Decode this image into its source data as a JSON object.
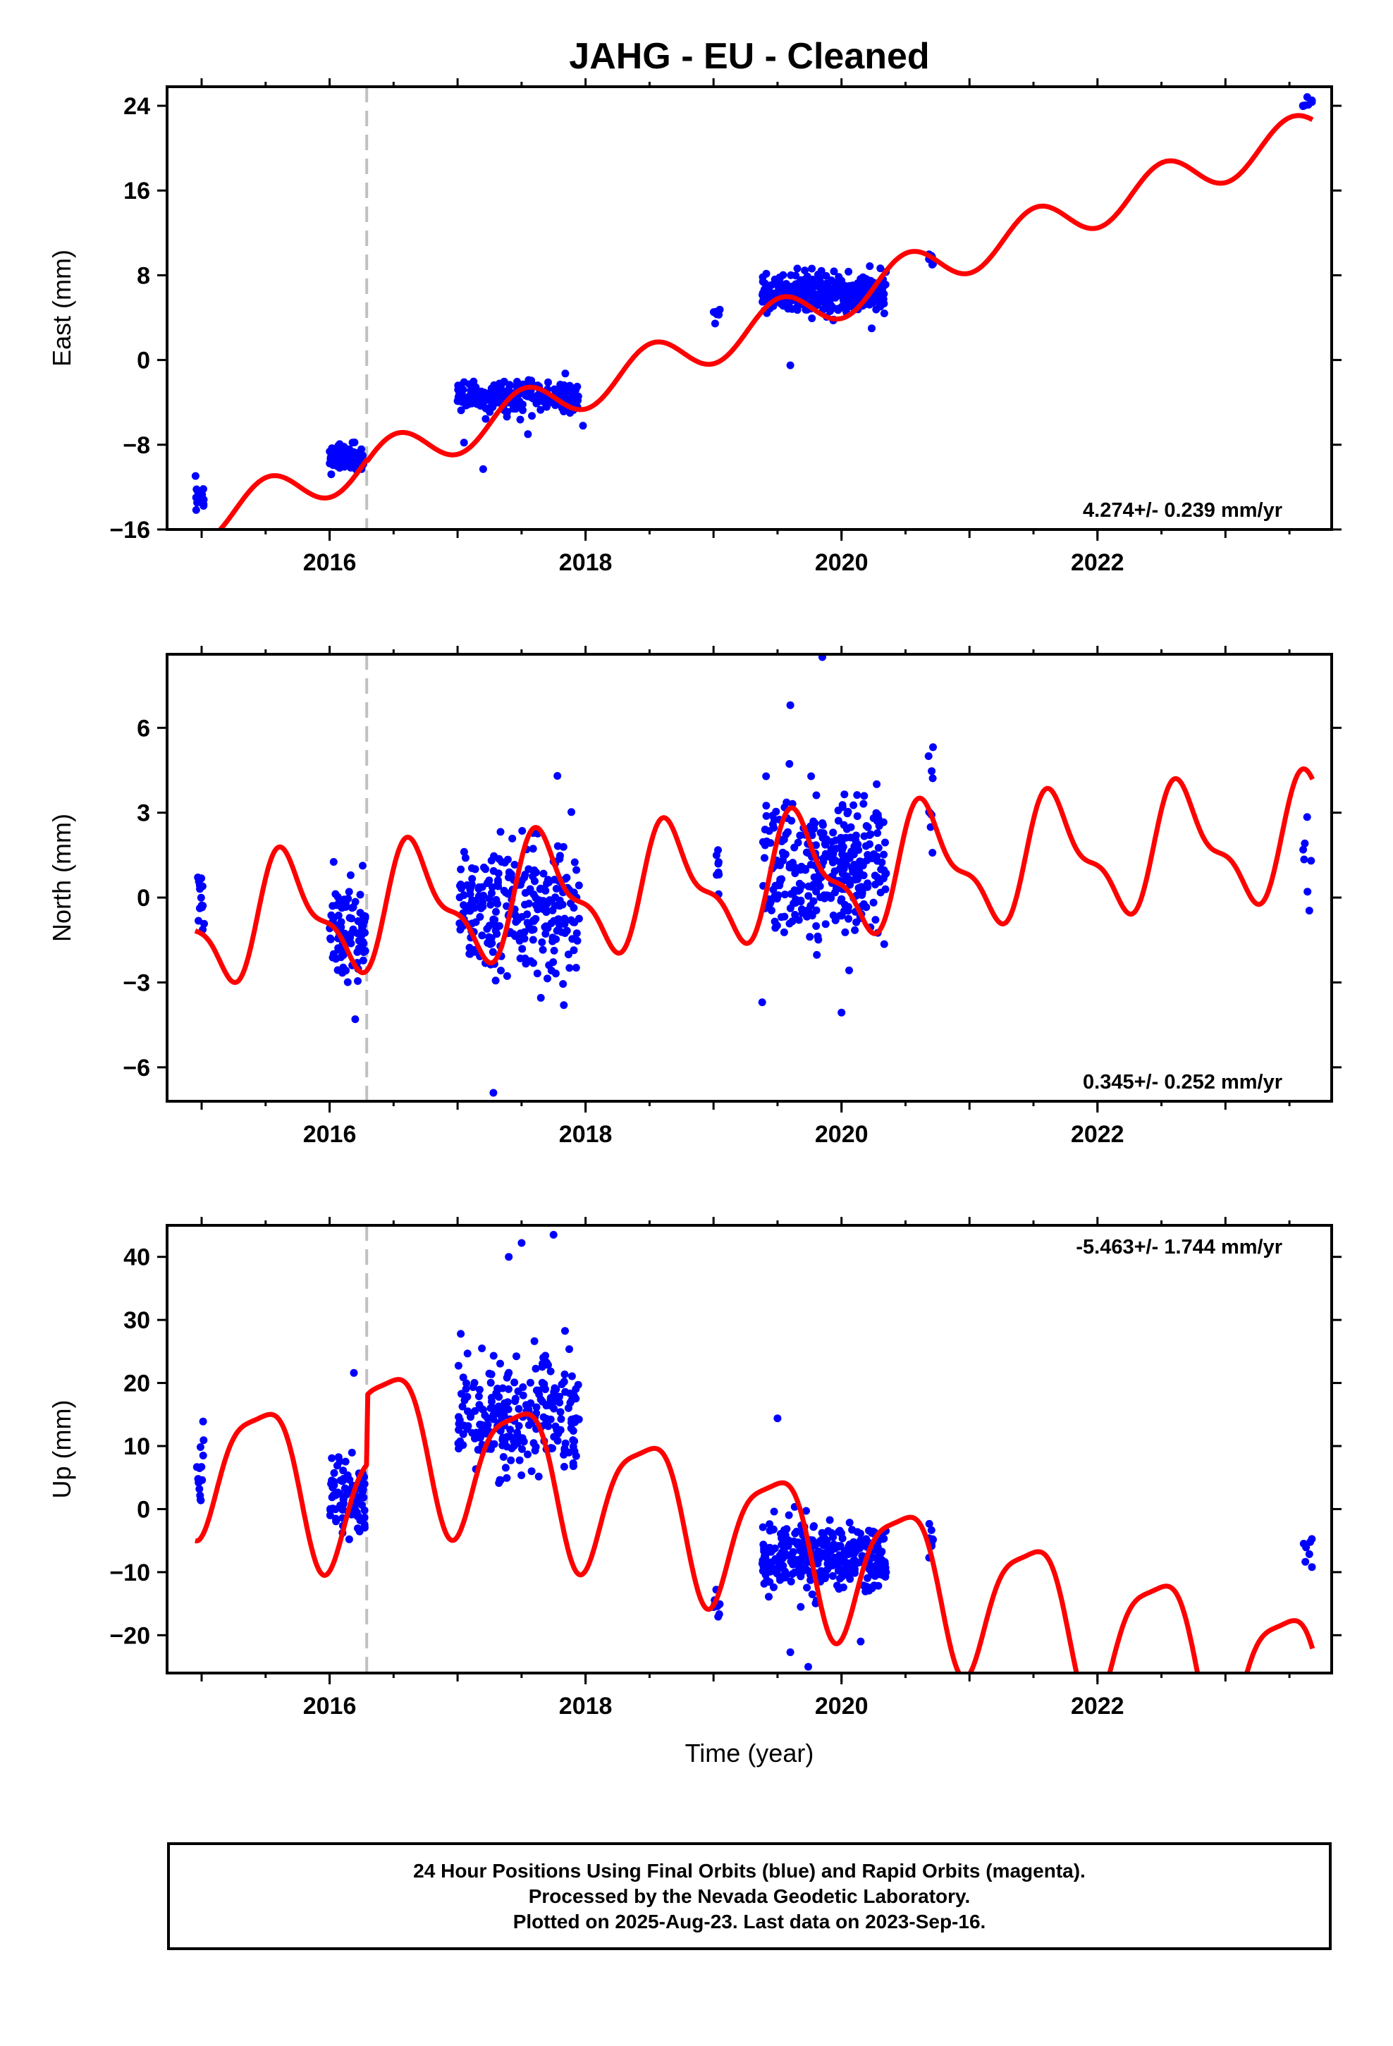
{
  "title": "JAHG  - EU - Cleaned",
  "colors": {
    "final_orbits": "#0000ff",
    "model": "#ff0000",
    "event_line": "#c0c0c0",
    "frame": "#000000"
  },
  "footer": {
    "line1": "24 Hour Positions Using Final Orbits (blue) and Rapid Orbits (magenta).",
    "line2": "Processed by the Nevada Geodetic Laboratory.",
    "line3": "Plotted on 2025-Aug-23. Last data on 2023-Sep-16."
  },
  "chart_data": [
    {
      "type": "scatter",
      "title": "JAHG  - EU - Cleaned",
      "xlabel": "",
      "ylabel": "East (mm)",
      "xlim": [
        2014.73,
        2023.83
      ],
      "ylim": [
        -16,
        25.8
      ],
      "xticks": [
        2016,
        2018,
        2020,
        2022
      ],
      "yticks": [
        -16,
        -8,
        0,
        8,
        16,
        24
      ],
      "rate_label": "4.274+/- 0.239 mm/yr",
      "event_line_x": 2016.29,
      "series": [
        {
          "style": "points",
          "clusters": [
            {
              "x": [
                2014.95,
                2015.02
              ],
              "y_center": -13.5,
              "y_spread": 1.5,
              "n": 14
            },
            {
              "x": [
                2016.0,
                2016.28
              ],
              "y_center": -9.2,
              "y_spread": 1.0,
              "n": 90
            },
            {
              "x": [
                2017.0,
                2017.95
              ],
              "y_center": -3.4,
              "y_spread": 1.3,
              "n": 260
            },
            {
              "x": [
                2019.0,
                2019.05
              ],
              "y_center": 4.2,
              "y_spread": 0.7,
              "n": 8
            },
            {
              "x": [
                2019.38,
                2020.35
              ],
              "y_center": 6.2,
              "y_spread": 1.6,
              "n": 330
            },
            {
              "x": [
                2020.68,
                2020.72
              ],
              "y_center": 9.8,
              "y_spread": 0.8,
              "n": 8
            },
            {
              "x": [
                2023.6,
                2023.68
              ],
              "y_center": 24.4,
              "y_spread": 0.7,
              "n": 7
            }
          ],
          "outliers": [
            [
              2017.2,
              -10.3
            ],
            [
              2017.05,
              -7.8
            ],
            [
              2017.98,
              -6.2
            ],
            [
              2019.6,
              -0.5
            ],
            [
              2020.32,
              6.8
            ],
            [
              2017.55,
              -7.0
            ]
          ]
        },
        {
          "style": "line",
          "model": {
            "t0": 2019.0,
            "offset": 1.65,
            "rate": 4.274,
            "a1s": -0.2,
            "a1c": -2.0,
            "a2s": 0.0,
            "a2c": 0.0
          },
          "x_range": [
            2014.95,
            2023.68
          ],
          "steps": [
            {
              "x": 2016.29,
              "dy": -0.2
            }
          ]
        }
      ]
    },
    {
      "type": "scatter",
      "xlabel": "",
      "ylabel": "North (mm)",
      "xlim": [
        2014.73,
        2023.83
      ],
      "ylim": [
        -7.2,
        8.6
      ],
      "xticks": [
        2016,
        2018,
        2020,
        2022
      ],
      "yticks": [
        -6,
        -3,
        0,
        3,
        6
      ],
      "rate_label": "0.345+/- 0.252 mm/yr",
      "event_line_x": 2016.29,
      "series": [
        {
          "style": "points",
          "clusters": [
            {
              "x": [
                2014.95,
                2015.02
              ],
              "y_center": 0.0,
              "y_spread": 0.9,
              "n": 14
            },
            {
              "x": [
                2016.0,
                2016.28
              ],
              "y_center": -1.2,
              "y_spread": 1.5,
              "n": 90
            },
            {
              "x": [
                2017.0,
                2017.95
              ],
              "y_center": -0.5,
              "y_spread": 1.9,
              "n": 260
            },
            {
              "x": [
                2019.0,
                2019.05
              ],
              "y_center": 0.5,
              "y_spread": 1.2,
              "n": 8
            },
            {
              "x": [
                2019.38,
                2020.35
              ],
              "y_center": 1.0,
              "y_spread": 1.9,
              "n": 330
            },
            {
              "x": [
                2020.68,
                2020.72
              ],
              "y_center": 2.5,
              "y_spread": 1.5,
              "n": 8
            },
            {
              "x": [
                2023.6,
                2023.68
              ],
              "y_center": 1.5,
              "y_spread": 1.5,
              "n": 7
            }
          ],
          "outliers": [
            [
              2017.28,
              -6.9
            ],
            [
              2019.85,
              8.5
            ],
            [
              2019.38,
              -3.7
            ],
            [
              2017.78,
              4.3
            ],
            [
              2016.2,
              -4.3
            ],
            [
              2020.68,
              5.0
            ],
            [
              2017.83,
              -3.8
            ],
            [
              2019.6,
              6.8
            ]
          ]
        },
        {
          "style": "line",
          "model": {
            "t0": 2019.0,
            "offset": 0.5,
            "rate": 0.345,
            "a1s": -1.7,
            "a1c": -0.9,
            "a2s": 0.6,
            "a2c": 0.5
          },
          "x_range": [
            2014.95,
            2023.68
          ],
          "steps": [
            {
              "x": 2016.29,
              "dy": 0.0
            }
          ]
        }
      ]
    },
    {
      "type": "scatter",
      "xlabel": "Time (year)",
      "ylabel": "Up (mm)",
      "xlim": [
        2014.73,
        2023.83
      ],
      "ylim": [
        -26,
        45
      ],
      "xticks": [
        2016,
        2018,
        2020,
        2022
      ],
      "yticks": [
        -20,
        -10,
        0,
        10,
        20,
        30,
        40
      ],
      "rate_label": "-5.463+/- 1.744 mm/yr",
      "event_line_x": 2016.29,
      "series": [
        {
          "style": "points",
          "clusters": [
            {
              "x": [
                2014.95,
                2015.02
              ],
              "y_center": 6.0,
              "y_spread": 5.5,
              "n": 14
            },
            {
              "x": [
                2016.0,
                2016.28
              ],
              "y_center": 2.0,
              "y_spread": 5.0,
              "n": 90
            },
            {
              "x": [
                2017.0,
                2017.95
              ],
              "y_center": 15.0,
              "y_spread": 8.0,
              "n": 260
            },
            {
              "x": [
                2019.0,
                2019.05
              ],
              "y_center": -15.5,
              "y_spread": 2.5,
              "n": 8
            },
            {
              "x": [
                2019.38,
                2020.35
              ],
              "y_center": -7.5,
              "y_spread": 4.5,
              "n": 330
            },
            {
              "x": [
                2020.68,
                2020.72
              ],
              "y_center": -6.0,
              "y_spread": 3.0,
              "n": 8
            },
            {
              "x": [
                2023.6,
                2023.68
              ],
              "y_center": -7.0,
              "y_spread": 4.0,
              "n": 7
            }
          ],
          "outliers": [
            [
              2017.75,
              43.5
            ],
            [
              2017.5,
              42.2
            ],
            [
              2019.74,
              -25.0
            ],
            [
              2016.19,
              21.6
            ],
            [
              2019.5,
              14.4
            ],
            [
              2019.6,
              -22.7
            ],
            [
              2017.4,
              40.0
            ],
            [
              2020.15,
              -21.0
            ]
          ]
        },
        {
          "style": "line",
          "model": {
            "t0": 2019.0,
            "offset": -2.25,
            "rate": -5.463,
            "a1s": 2.0,
            "a1c": -11.0,
            "a2s": 2.0,
            "a2c": -2.0
          },
          "x_range": [
            2014.95,
            2023.68
          ],
          "steps": [
            {
              "x": 2016.29,
              "dy": 11.0
            }
          ]
        }
      ]
    }
  ]
}
